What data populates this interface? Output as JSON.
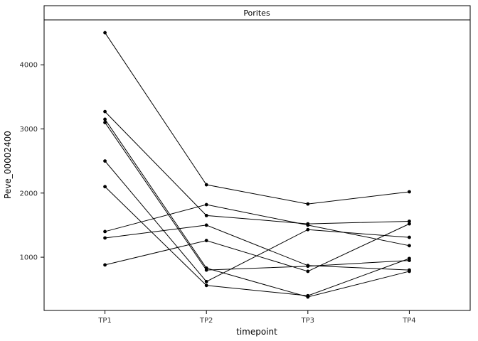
{
  "chart_data": {
    "type": "line",
    "facet_title": "Porites",
    "title": "",
    "xlabel": "timepoint",
    "ylabel": "Peve_00002400",
    "categories": [
      "TP1",
      "TP2",
      "TP3",
      "TP4"
    ],
    "series": [
      [
        4500,
        2130,
        1830,
        2020
      ],
      [
        3270,
        1650,
        1520,
        1560
      ],
      [
        3150,
        830,
        380,
        780
      ],
      [
        3100,
        800,
        860,
        950
      ],
      [
        2500,
        620,
        1430,
        1310
      ],
      [
        2100,
        560,
        400,
        980
      ],
      [
        1400,
        1820,
        1500,
        1180
      ],
      [
        1300,
        1500,
        870,
        800
      ],
      [
        880,
        1260,
        780,
        1520
      ]
    ],
    "yticks": [
      1000,
      2000,
      3000,
      4000
    ],
    "ylim": [
      170,
      4700
    ],
    "grid": "off",
    "legend": "none",
    "line_color": "#000000",
    "point_color": "#000000"
  }
}
